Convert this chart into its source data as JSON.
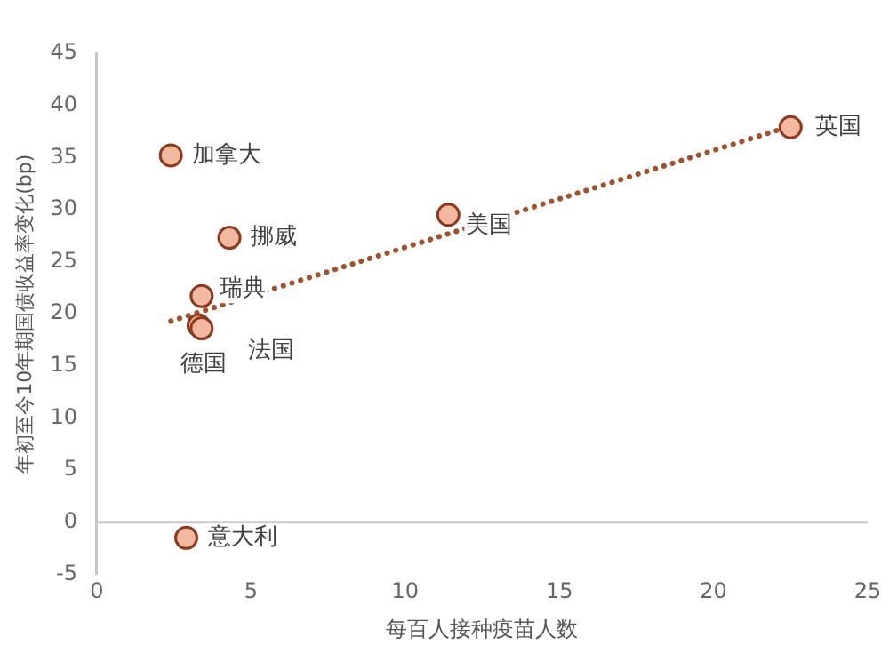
{
  "chart_data": {
    "type": "scatter",
    "xlabel": "每百人接种疫苗人数",
    "ylabel": "年初至今10年期国债收益率变化(bp)",
    "xlim": [
      0,
      25
    ],
    "xticks": [
      0,
      5,
      10,
      15,
      20,
      25
    ],
    "ylim": [
      -5,
      45
    ],
    "yticks": [
      -5,
      0,
      5,
      10,
      15,
      20,
      25,
      30,
      35,
      40,
      45
    ],
    "grid": false,
    "ref_lines": [
      {
        "axis": "y",
        "value": 0,
        "color": "#c8c8c8"
      }
    ],
    "legend": false,
    "marker": "circle",
    "series": [
      {
        "color": "#f2b9a0",
        "x": [
          2.4,
          4.3,
          3.4,
          3.3,
          3.4,
          2.9,
          11.4,
          22.5
        ],
        "values": [
          35.2,
          27.3,
          21.7,
          18.9,
          18.6,
          -1.5,
          29.5,
          37.9
        ]
      },
      {
        "type": "line",
        "color": "#a0522d",
        "line_style": "dotted",
        "marker": "none",
        "x": [
          2.4,
          22.6
        ],
        "values": [
          19.3,
          38.1
        ]
      }
    ],
    "annotations": [
      {
        "text": "加拿大",
        "x": 2.4,
        "y": 35.2
      },
      {
        "text": "挪威",
        "x": 4.3,
        "y": 27.3
      },
      {
        "text": "瑞典",
        "x": 3.4,
        "y": 21.7
      },
      {
        "text": "德国",
        "x": 3.3,
        "y": 18.9
      },
      {
        "text": "法国",
        "x": 3.4,
        "y": 18.6
      },
      {
        "text": "意大利",
        "x": 2.9,
        "y": -1.5
      },
      {
        "text": "美国",
        "x": 11.4,
        "y": 29.5
      },
      {
        "text": "英国",
        "x": 22.5,
        "y": 37.9
      }
    ]
  }
}
